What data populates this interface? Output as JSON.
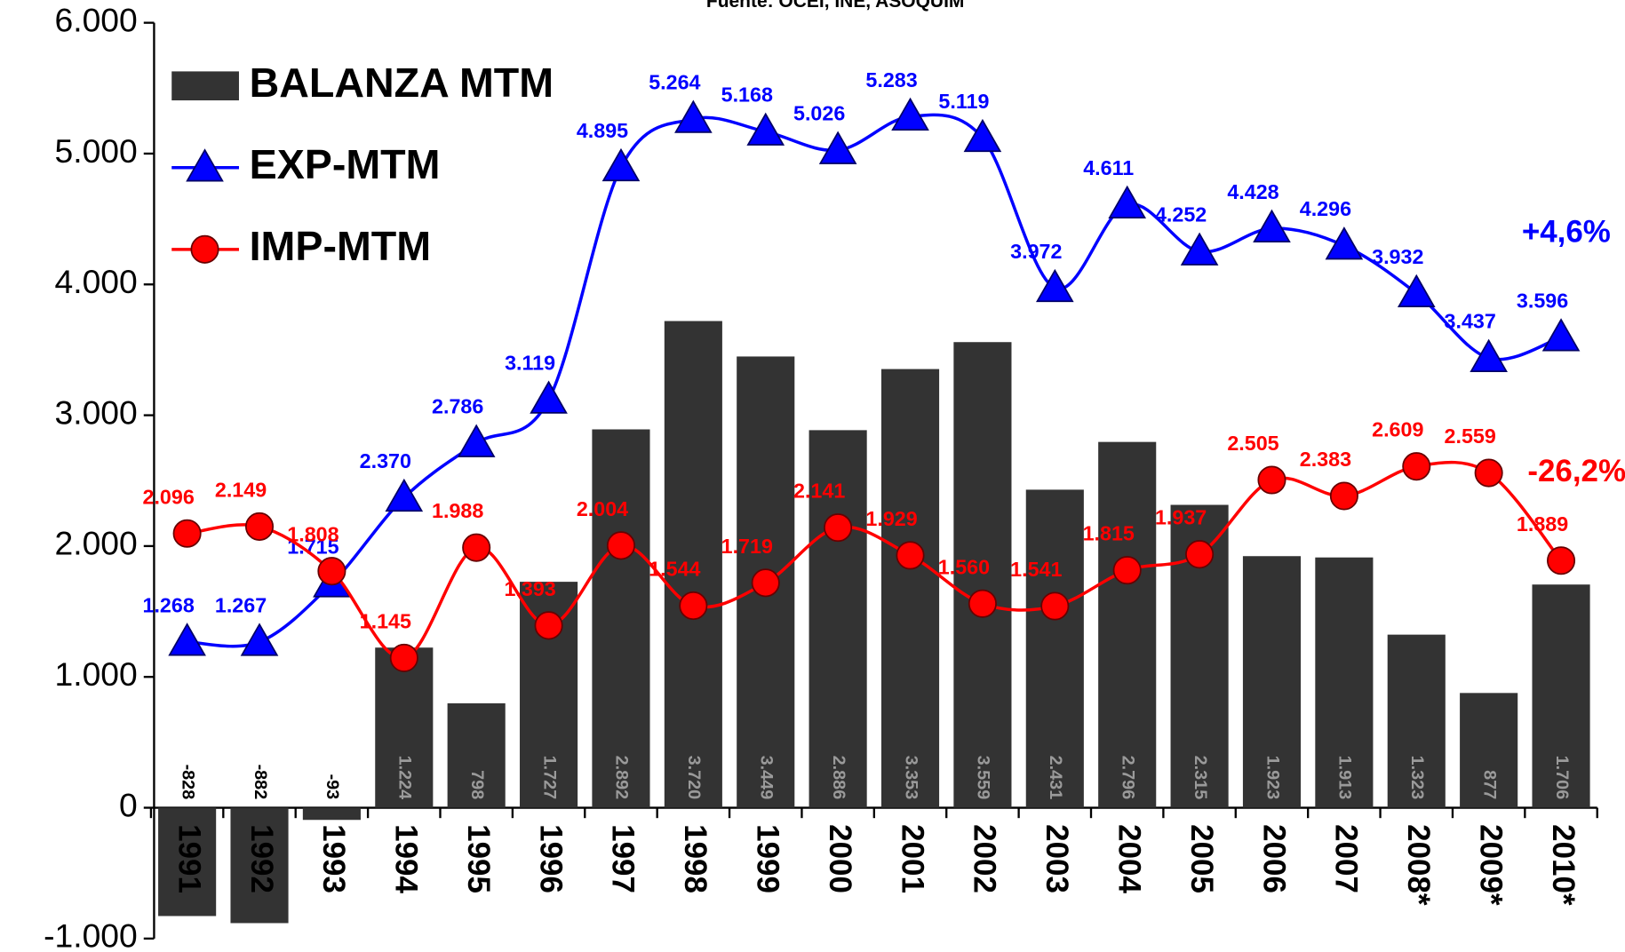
{
  "chart_data": {
    "type": "combo",
    "title": "Fuente: OCEI, INE, ASOQUIM",
    "categories": [
      "1991",
      "1992",
      "1993",
      "1994",
      "1995",
      "1996",
      "1997",
      "1998",
      "1999",
      "2000",
      "2001",
      "2002",
      "2003",
      "2004",
      "2005",
      "2006",
      "2007",
      "2008*",
      "2009*",
      "2010*"
    ],
    "ylim": [
      -1000,
      6000
    ],
    "yticks": [
      {
        "value": -1000,
        "label": "-1.000"
      },
      0,
      {
        "value": 1000,
        "label": "1.000"
      },
      {
        "value": 2000,
        "label": "2.000"
      },
      {
        "value": 3000,
        "label": "3.000"
      },
      {
        "value": 4000,
        "label": "4.000"
      },
      {
        "value": 5000,
        "label": "5.000"
      },
      {
        "value": 6000,
        "label": "6.000"
      }
    ],
    "grid": false,
    "legend": "upper left",
    "series": [
      {
        "name": "BALANZA MTM",
        "type": "bar",
        "color": "#333333",
        "values": [
          -828,
          -882,
          -93,
          1224,
          798,
          1727,
          2892,
          3720,
          3449,
          2886,
          3353,
          3559,
          2431,
          2796,
          2315,
          1923,
          1913,
          1323,
          877,
          1706
        ],
        "value_labels": [
          "-828",
          "-882",
          "-93",
          "1.224",
          "798",
          "1.727",
          "2.892",
          "3.720",
          "3.449",
          "2.886",
          "3.353",
          "3.559",
          "2.431",
          "2.796",
          "2.315",
          "1.923",
          "1.913",
          "1.323",
          "877",
          "1.706"
        ]
      },
      {
        "name": "EXP-MTM",
        "type": "line",
        "marker": "triangle",
        "color": "#0000ff",
        "annotation": "+4,6%",
        "values": [
          1268,
          1267,
          1715,
          2370,
          2786,
          3119,
          4895,
          5264,
          5168,
          5026,
          5283,
          5119,
          3972,
          4611,
          4252,
          4428,
          4296,
          3932,
          3437,
          3596
        ],
        "value_labels": [
          "1.268",
          "1.267",
          "1.715",
          "2.370",
          "2.786",
          "3.119",
          "4.895",
          "5.264",
          "5.168",
          "5.026",
          "5.283",
          "5.119",
          "3.972",
          "4.611",
          "4.252",
          "4.428",
          "4.296",
          "3.932",
          "3.437",
          "3.596"
        ]
      },
      {
        "name": "IMP-MTM",
        "type": "line",
        "marker": "circle",
        "color": "#ff0000",
        "annotation": "-26,2%",
        "values": [
          2096,
          2149,
          1808,
          1145,
          1988,
          1393,
          2004,
          1544,
          1719,
          2141,
          1929,
          1560,
          1541,
          1815,
          1937,
          2505,
          2383,
          2609,
          2559,
          1889
        ],
        "value_labels": [
          "2.096",
          "2.149",
          "1.808",
          "1.145",
          "1.988",
          "1.393",
          "2.004",
          "1.544",
          "1.719",
          "2.141",
          "1.929",
          "1.560",
          "1.541",
          "1.815",
          "1.937",
          "2.505",
          "2.383",
          "2.609",
          "2.559",
          "1.889"
        ]
      }
    ]
  }
}
